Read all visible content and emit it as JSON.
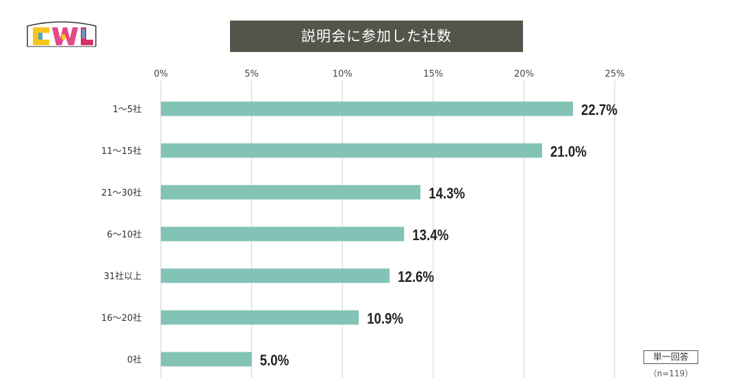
{
  "logo": {
    "text": "CWL"
  },
  "chart_data": {
    "type": "bar",
    "orientation": "horizontal",
    "title": "説明会に参加した社数",
    "categories": [
      "1～5社",
      "11～15社",
      "21～30社",
      "6～10社",
      "31社以上",
      "16～20社",
      "0社"
    ],
    "values": [
      22.7,
      21.0,
      14.3,
      13.4,
      12.6,
      10.9,
      5.0
    ],
    "value_labels": [
      "22.7%",
      "21.0%",
      "14.3%",
      "13.4%",
      "12.6%",
      "10.9%",
      "5.0%"
    ],
    "xticks": [
      "0%",
      "5%",
      "10%",
      "15%",
      "20%",
      "25%"
    ],
    "xlim": [
      0,
      25
    ],
    "grid": true,
    "bar_color": "#82c3b6"
  },
  "note": {
    "answer_type": "単一回答",
    "sample": "（n=119）"
  }
}
